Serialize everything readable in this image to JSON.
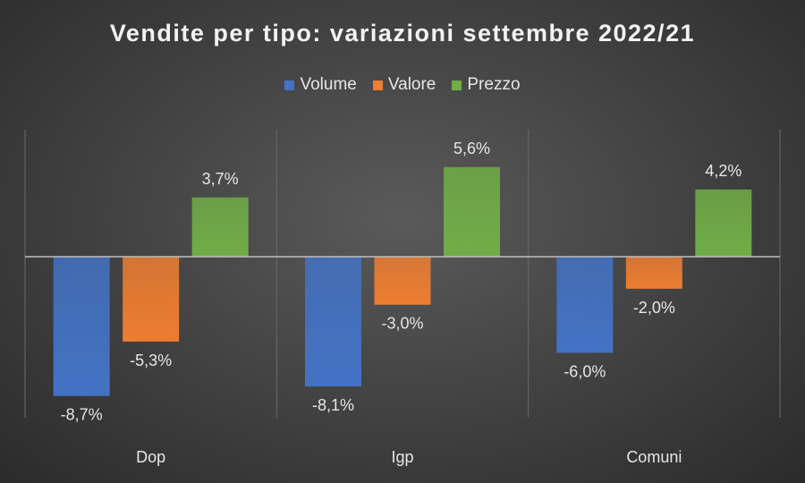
{
  "chart_data": {
    "type": "bar",
    "title": "Vendite per tipo: variazioni settembre 2022/21",
    "categories": [
      "Dop",
      "Igp",
      "Comuni"
    ],
    "series": [
      {
        "name": "Volume",
        "values": [
          -8.7,
          -8.1,
          -6.0
        ],
        "labels": [
          "-8,7%",
          "-8,1%",
          "-6,0%"
        ],
        "color": "#4472c4"
      },
      {
        "name": "Valore",
        "values": [
          -5.3,
          -3.0,
          -2.0
        ],
        "labels": [
          "-5,3%",
          "-3,0%",
          "-2,0%"
        ],
        "color": "#ed7d31"
      },
      {
        "name": "Prezzo",
        "values": [
          3.7,
          5.6,
          4.2
        ],
        "labels": [
          "3,7%",
          "5,6%",
          "4,2%"
        ],
        "color": "#70ad47"
      }
    ],
    "unit": "%",
    "ylim": [
      -10,
      8
    ],
    "legend_position": "top",
    "grid": false
  }
}
